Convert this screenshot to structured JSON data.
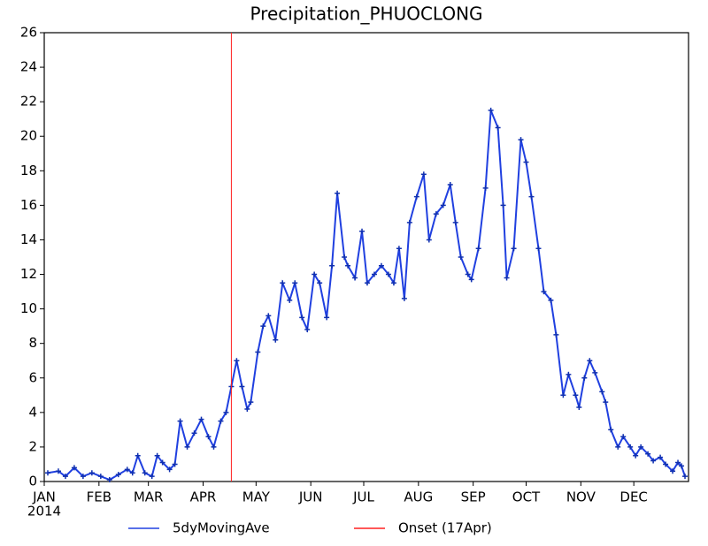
{
  "chart_data": {
    "type": "line",
    "title": "Precipitation_PHUOCLONG",
    "x_sublabel": "2014",
    "xlim": [
      0,
      365
    ],
    "xticks": [
      {
        "value": 0,
        "label": "JAN"
      },
      {
        "value": 31,
        "label": "FEB"
      },
      {
        "value": 59,
        "label": "MAR"
      },
      {
        "value": 90,
        "label": "APR"
      },
      {
        "value": 120,
        "label": "MAY"
      },
      {
        "value": 151,
        "label": "JUN"
      },
      {
        "value": 181,
        "label": "JUL"
      },
      {
        "value": 212,
        "label": "AUG"
      },
      {
        "value": 243,
        "label": "SEP"
      },
      {
        "value": 273,
        "label": "OCT"
      },
      {
        "value": 304,
        "label": "NOV"
      },
      {
        "value": 334,
        "label": "DEC"
      }
    ],
    "ylim": [
      0,
      26
    ],
    "yticks": [
      0,
      2,
      4,
      6,
      8,
      10,
      12,
      14,
      16,
      18,
      20,
      22,
      24,
      26
    ],
    "x": [
      2,
      8,
      12,
      17,
      22,
      27,
      32,
      37,
      42,
      47,
      50,
      53,
      57,
      61,
      64,
      67,
      71,
      74,
      77,
      81,
      85,
      89,
      93,
      96,
      100,
      103,
      106,
      109,
      112,
      115,
      117,
      121,
      124,
      127,
      131,
      135,
      139,
      142,
      146,
      149,
      153,
      156,
      160,
      163,
      166,
      170,
      172,
      176,
      180,
      183,
      187,
      191,
      195,
      198,
      201,
      204,
      207,
      211,
      215,
      218,
      222,
      226,
      230,
      233,
      236,
      240,
      242,
      246,
      250,
      253,
      257,
      260,
      262,
      266,
      270,
      273,
      276,
      280,
      283,
      287,
      290,
      294,
      297,
      301,
      303,
      306,
      309,
      312,
      316,
      318,
      321,
      325,
      328,
      332,
      335,
      338,
      342,
      345,
      349,
      352,
      356,
      359,
      361,
      363
    ],
    "series": [
      {
        "name": "5dyMovingAve",
        "color": "#2040e0",
        "values": [
          0.5,
          0.6,
          0.3,
          0.8,
          0.3,
          0.5,
          0.3,
          0.1,
          0.4,
          0.7,
          0.5,
          1.5,
          0.5,
          0.3,
          1.5,
          1.1,
          0.7,
          1.0,
          3.5,
          2.0,
          2.8,
          3.6,
          2.6,
          2.0,
          3.5,
          4.0,
          5.5,
          7.0,
          5.5,
          4.2,
          4.6,
          7.5,
          9.0,
          9.6,
          8.2,
          11.5,
          10.5,
          11.5,
          9.5,
          8.8,
          12.0,
          11.5,
          9.5,
          12.5,
          16.7,
          13.0,
          12.5,
          11.8,
          14.5,
          11.5,
          12.0,
          12.5,
          12.0,
          11.5,
          13.5,
          10.6,
          15.0,
          16.5,
          17.8,
          14.0,
          15.5,
          16.0,
          17.2,
          15.0,
          13.0,
          12.0,
          11.7,
          13.5,
          17.0,
          21.5,
          20.5,
          16.0,
          11.8,
          13.5,
          19.8,
          18.5,
          16.5,
          13.5,
          11.0,
          10.5,
          8.5,
          5.0,
          6.2,
          5.0,
          4.3,
          6.0,
          7.0,
          6.3,
          5.2,
          4.6,
          3.0,
          2.0,
          2.6,
          2.0,
          1.5,
          2.0,
          1.6,
          1.2,
          1.4,
          1.0,
          0.6,
          1.1,
          0.9,
          0.3
        ]
      }
    ],
    "onset": {
      "name": "Onset (17Apr)",
      "x": 106,
      "color": "#ff2020"
    }
  }
}
